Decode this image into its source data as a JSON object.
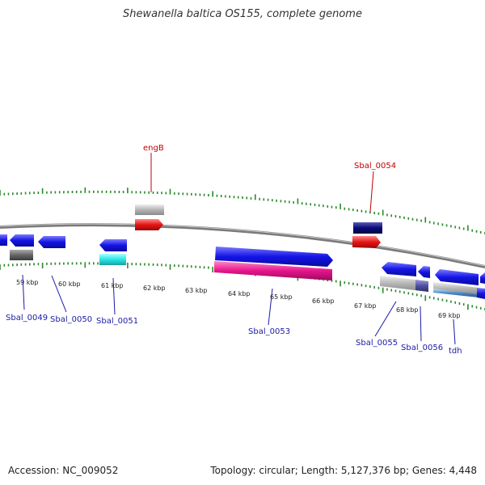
{
  "title": "Shewanella baltica OS155, complete genome",
  "footer": {
    "accession": "Accession: NC_009052",
    "topology": "Topology: circular; Length: 5,127,376 bp; Genes: 4,448"
  },
  "kbp_labels": [
    "59 kbp",
    "60 kbp",
    "61 kbp",
    "62 kbp",
    "63 kbp",
    "64 kbp",
    "65 kbp",
    "66 kbp",
    "67 kbp",
    "68 kbp",
    "69 kbp"
  ],
  "gene_labels": {
    "engB": "engB",
    "Sbal_0054": "Sbal_0054",
    "Sbal_0049": "Sbal_0049",
    "Sbal_0050": "Sbal_0050",
    "Sbal_0051": "Sbal_0051",
    "Sbal_0053": "Sbal_0053",
    "Sbal_0055": "Sbal_0055",
    "Sbal_0056": "Sbal_0056",
    "tdh": "tdh"
  },
  "colors": {
    "backbone": "#888888",
    "tick": "#2a8a2a",
    "gene_blue": "#1414e6",
    "gene_red": "#e61414",
    "gene_cyan": "#28e6e6",
    "gene_pink": "#e6148c",
    "gene_navy": "#0a0a78",
    "gene_grey": "#b4b4b4",
    "gene_darkgrey": "#666666",
    "gene_steel": "#4a8ac8",
    "label_blue": "#1a1aa8",
    "label_red": "#c00000"
  }
}
